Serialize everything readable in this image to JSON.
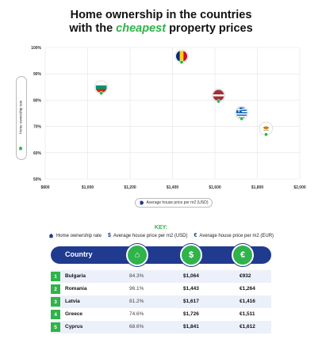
{
  "title": {
    "line1": "Home ownership in the countries",
    "line2_prefix": "with the ",
    "line2_emphasis": "cheapest",
    "line2_suffix": " property prices"
  },
  "chart_data": {
    "type": "scatter",
    "ylabel": "Home ownership rate",
    "xlabel": "Average house price per m2 (USD)",
    "xlim": [
      800,
      2000
    ],
    "ylim": [
      50,
      100
    ],
    "x_ticks": [
      "$800",
      "$1,000",
      "$1,200",
      "$1,400",
      "$1,600",
      "$1,800",
      "$2,000"
    ],
    "y_ticks": [
      "50%",
      "60%",
      "70%",
      "80%",
      "90%",
      "100%"
    ],
    "grid": true,
    "points": [
      {
        "label": "Bulgaria",
        "x": 1064,
        "y": 84.3,
        "flag": [
          "#ffffff",
          "#00966e",
          "#d62612"
        ]
      },
      {
        "label": "Romania",
        "x": 1443,
        "y": 96.1,
        "flag_v": [
          "#002b7f",
          "#fcd116",
          "#ce1126"
        ]
      },
      {
        "label": "Latvia",
        "x": 1617,
        "y": 81.2,
        "flag": [
          "#9e3039",
          "#ffffff",
          "#9e3039"
        ]
      },
      {
        "label": "Greece",
        "x": 1726,
        "y": 74.6,
        "flag": [
          "#0d5eaf",
          "#ffffff",
          "#0d5eaf"
        ]
      },
      {
        "label": "Cyprus",
        "x": 1841,
        "y": 68.6,
        "flag": [
          "#ffffff",
          "#d57800",
          "#ffffff"
        ]
      }
    ]
  },
  "key": {
    "title": "KEY:",
    "items": [
      {
        "icon": "home-icon",
        "label": "Home ownership rate"
      },
      {
        "icon": "dollar-icon",
        "label": "Average house price per m2 (USD)"
      },
      {
        "icon": "euro-icon",
        "label": "Average house price per m2 (EUR)"
      }
    ]
  },
  "table": {
    "header": {
      "country": "Country",
      "icons": [
        "⌂",
        "$",
        "€"
      ]
    },
    "rows": [
      {
        "rank": "1",
        "country": "Bulgaria",
        "ownership": "84.3%",
        "usd": "$1,064",
        "eur": "€932"
      },
      {
        "rank": "2",
        "country": "Romania",
        "ownership": "96.1%",
        "usd": "$1,443",
        "eur": "€1,264"
      },
      {
        "rank": "3",
        "country": "Latvia",
        "ownership": "81.2%",
        "usd": "$1,617",
        "eur": "€1,416"
      },
      {
        "rank": "4",
        "country": "Greece",
        "ownership": "74.6%",
        "usd": "$1,726",
        "eur": "€1,511"
      },
      {
        "rank": "5",
        "country": "Cyprus",
        "ownership": "68.6%",
        "usd": "$1,841",
        "eur": "€1,612"
      }
    ]
  },
  "colors": {
    "accent_green": "#2fb34a",
    "navy": "#1f3a8f"
  }
}
